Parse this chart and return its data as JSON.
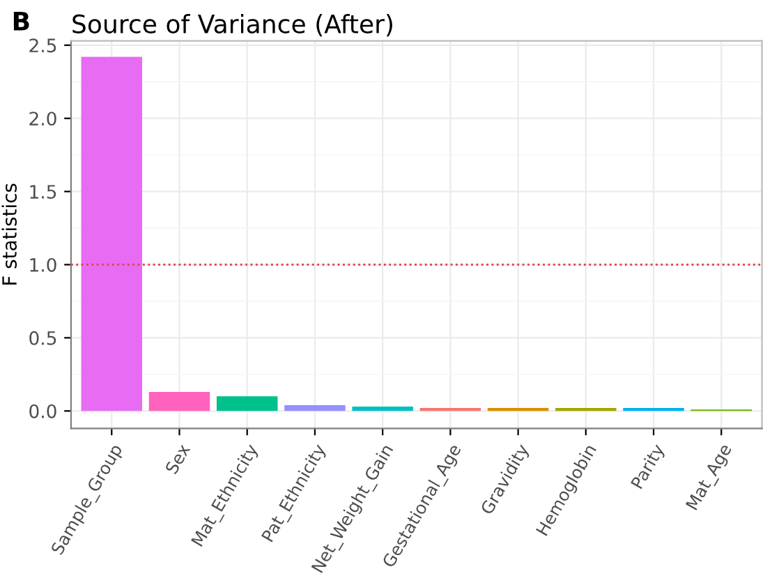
{
  "chart_data": {
    "type": "bar",
    "title": "Source of Variance (After)",
    "ylabel": "F statistics",
    "annotations": [
      "B"
    ],
    "categories": [
      "Sample_Group",
      "Sex",
      "Mat_Ethnicity",
      "Pat_Ethnicity",
      "Net_Weight_Gain",
      "Gestational_Age",
      "Gravidity",
      "Hemoglobin",
      "Parity",
      "Mat_Age"
    ],
    "values": [
      2.42,
      0.13,
      0.1,
      0.04,
      0.03,
      0.02,
      0.02,
      0.02,
      0.02,
      0.01
    ],
    "colors": [
      "#e76bf3",
      "#ff62bc",
      "#00c08b",
      "#9590ff",
      "#00bfc4",
      "#f8766d",
      "#d89000",
      "#a3a500",
      "#00b0f6",
      "#6bb100"
    ],
    "ylim": [
      -0.12,
      2.53
    ],
    "yticks": [
      {
        "value": 0,
        "label": "0.0"
      },
      {
        "value": 0.5,
        "label": "0.5"
      },
      {
        "value": 1,
        "label": "1.0"
      },
      {
        "value": 1.5,
        "label": "1.5"
      },
      {
        "value": 2,
        "label": "2.0"
      },
      {
        "value": 2.5,
        "label": "2.5"
      }
    ],
    "ref_lines": [
      {
        "axis": "y",
        "value": 1,
        "color": "#e0474c",
        "line_style": "dotted"
      }
    ],
    "grid": true,
    "legend": false
  }
}
